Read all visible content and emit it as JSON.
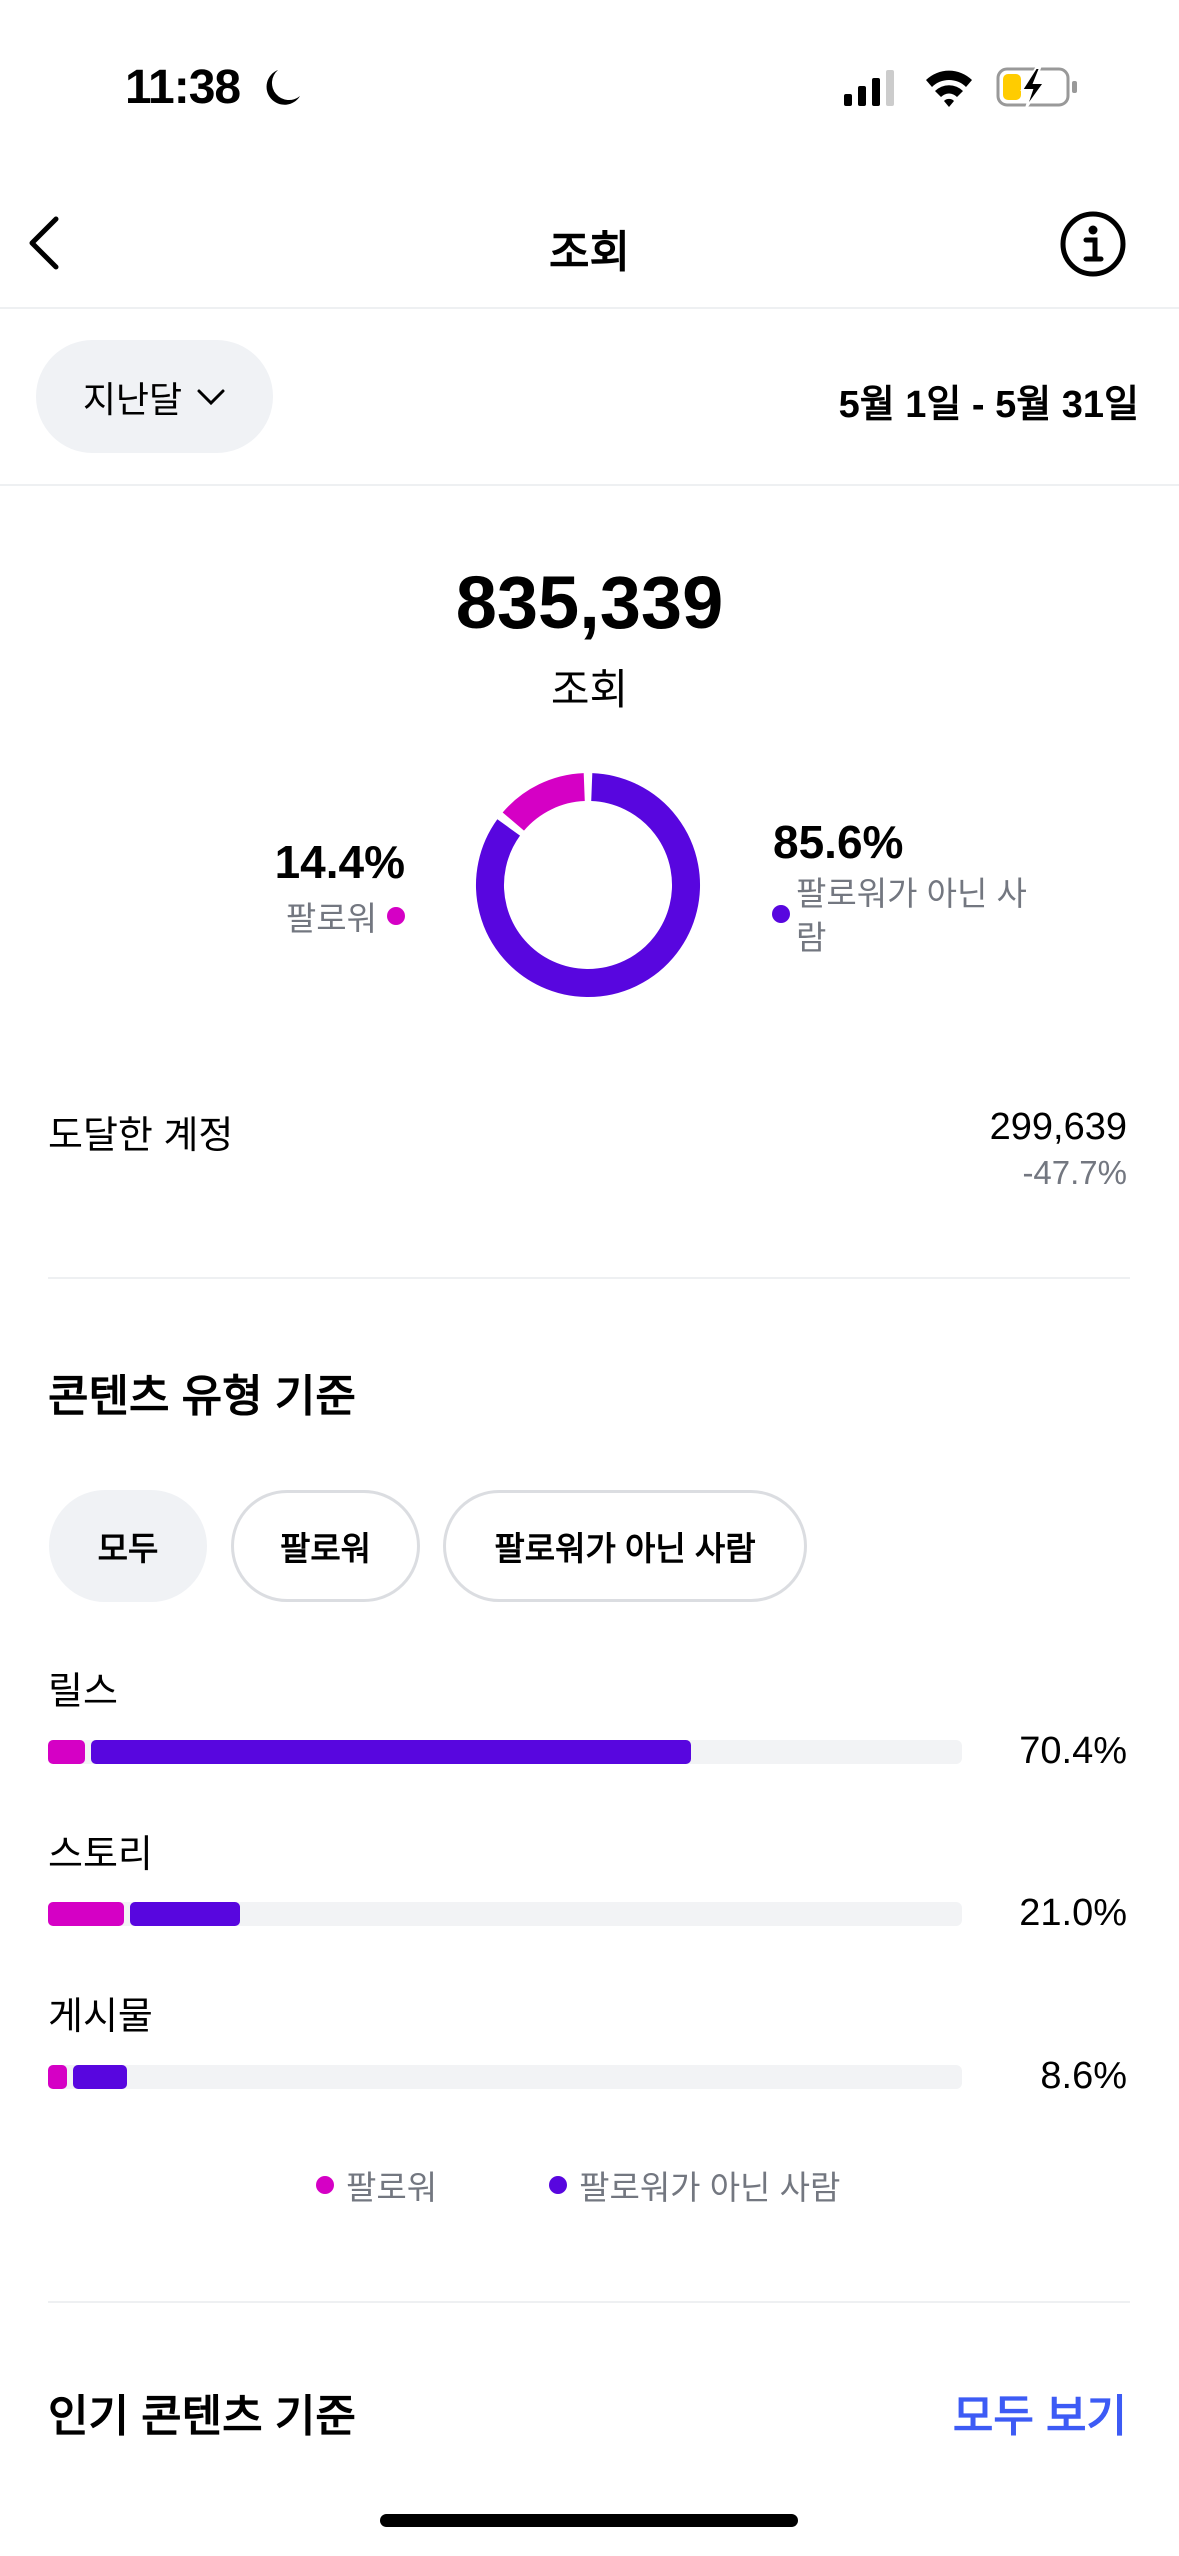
{
  "status_bar": {
    "time": "11:38",
    "icons": [
      "moon-icon",
      "cellular-signal-icon",
      "wifi-icon",
      "battery-charging-icon"
    ]
  },
  "nav": {
    "title": "조회",
    "back_icon": "chevron-left-icon",
    "info_icon": "info-icon"
  },
  "filter": {
    "period": "지난달",
    "date_range": "5월 1일 - 5월 31일"
  },
  "summary": {
    "total": "835,339",
    "total_label": "조회",
    "followers_pct": "14.4%",
    "followers_label": "팔로워",
    "non_followers_pct": "85.6%",
    "non_followers_label": "팔로워가 아닌 사람",
    "followers_value": 14.4,
    "non_followers_value": 85.6
  },
  "reach": {
    "label": "도달한 계정",
    "value": "299,639",
    "change": "-47.7%"
  },
  "content_type": {
    "title": "콘텐츠 유형 기준",
    "tabs": [
      {
        "label": "모두",
        "active": true
      },
      {
        "label": "팔로워",
        "active": false
      },
      {
        "label": "팔로워가 아닌 사람",
        "active": false
      }
    ],
    "rows": [
      {
        "label": "릴스",
        "pct": "70.4%",
        "followers": 4.0,
        "non_followers": 66.4
      },
      {
        "label": "스토리",
        "pct": "21.0%",
        "followers": 8.3,
        "non_followers": 12.7
      },
      {
        "label": "게시물",
        "pct": "8.6%",
        "followers": 2.1,
        "non_followers": 6.5
      }
    ],
    "legend": {
      "followers": "팔로워",
      "non_followers": "팔로워가 아닌 사람"
    }
  },
  "top_content": {
    "title": "인기 콘텐츠 기준",
    "see_all": "모두 보기"
  },
  "colors": {
    "followers": "#D500C5",
    "non_followers": "#5806DF",
    "link": "#3D5BF5",
    "muted": "#737780"
  }
}
